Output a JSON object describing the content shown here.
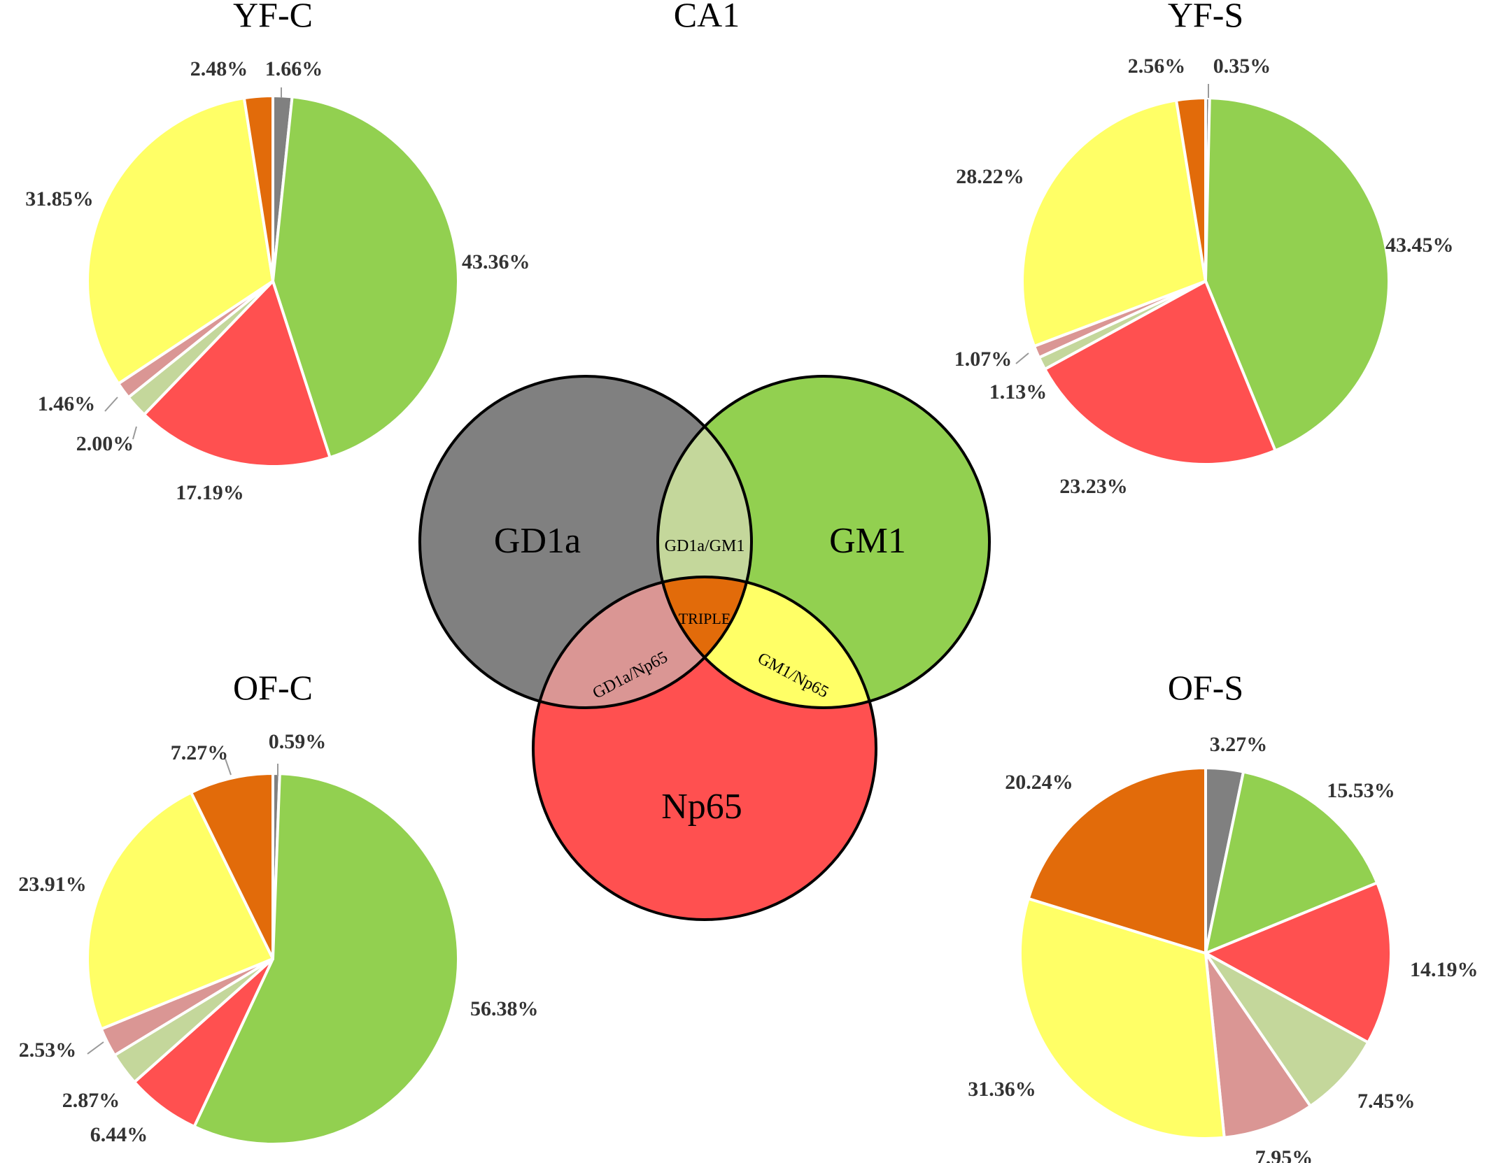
{
  "colors": {
    "gd1a": "#808080",
    "gm1": "#92d050",
    "np65": "#ff5050",
    "gd1a_gm1": "#c4d79b",
    "gd1a_np65": "#da9694",
    "gm1_np65": "#ffff66",
    "triple": "#e26b0a"
  },
  "venn": {
    "title": "CA1",
    "gd1a": "GD1a",
    "gm1": "GM1",
    "np65": "Np65",
    "gd1a_gm1": "GD1a/GM1",
    "gd1a_np65": "GD1a/Np65",
    "gm1_np65": "GM1/Np65",
    "triple": "TRIPLE"
  },
  "chart_data": [
    {
      "type": "pie",
      "title": "YF-C",
      "categories": [
        "GD1a",
        "GM1",
        "Np65",
        "GD1a/GM1",
        "GD1a/Np65",
        "GM1/Np65",
        "TRIPLE"
      ],
      "values": [
        1.66,
        43.36,
        17.19,
        2.0,
        1.46,
        31.85,
        2.48
      ],
      "labels": [
        "1.66%",
        "43.36%",
        "17.19%",
        "2.00%",
        "1.46%",
        "31.85%",
        "2.48%"
      ]
    },
    {
      "type": "pie",
      "title": "YF-S",
      "categories": [
        "GD1a",
        "GM1",
        "Np65",
        "GD1a/GM1",
        "GD1a/Np65",
        "GM1/Np65",
        "TRIPLE"
      ],
      "values": [
        0.35,
        43.45,
        23.23,
        1.13,
        1.07,
        28.22,
        2.56
      ],
      "labels": [
        "0.35%",
        "43.45%",
        "23.23%",
        "1.13%",
        "1.07%",
        "28.22%",
        "2.56%"
      ]
    },
    {
      "type": "pie",
      "title": "OF-C",
      "categories": [
        "GD1a",
        "GM1",
        "Np65",
        "GD1a/GM1",
        "GD1a/Np65",
        "GM1/Np65",
        "TRIPLE"
      ],
      "values": [
        0.59,
        56.38,
        6.44,
        2.87,
        2.53,
        23.91,
        7.27
      ],
      "labels": [
        "0.59%",
        "56.38%",
        "6.44%",
        "2.87%",
        "2.53%",
        "23.91%",
        "7.27%"
      ]
    },
    {
      "type": "pie",
      "title": "OF-S",
      "categories": [
        "GD1a",
        "GM1",
        "Np65",
        "GD1a/GM1",
        "GD1a/Np65",
        "GM1/Np65",
        "TRIPLE"
      ],
      "values": [
        3.27,
        15.53,
        14.19,
        7.45,
        7.95,
        31.36,
        20.24
      ],
      "labels": [
        "3.27%",
        "15.53%",
        "14.19%",
        "7.45%",
        "7.95%",
        "31.36%",
        "20.24%"
      ]
    }
  ]
}
